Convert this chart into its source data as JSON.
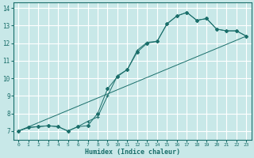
{
  "xlabel": "Humidex (Indice chaleur)",
  "bg_color": "#c8e8e8",
  "grid_color": "#ffffff",
  "line_color": "#1a6e6a",
  "xlim": [
    -0.5,
    23.5
  ],
  "ylim": [
    6.5,
    14.3
  ],
  "xticks": [
    0,
    1,
    2,
    3,
    4,
    5,
    6,
    7,
    8,
    9,
    10,
    11,
    12,
    13,
    14,
    15,
    16,
    17,
    18,
    19,
    20,
    21,
    22,
    23
  ],
  "yticks": [
    7,
    8,
    9,
    10,
    11,
    12,
    13,
    14
  ],
  "line1_x": [
    0,
    1,
    2,
    3,
    4,
    5,
    6,
    7,
    8,
    9,
    10,
    11,
    12,
    13,
    14,
    15,
    16,
    17,
    18,
    19,
    20,
    21,
    22,
    23
  ],
  "line1_y": [
    7.0,
    7.2,
    7.25,
    7.3,
    7.25,
    7.0,
    7.25,
    7.3,
    8.0,
    9.4,
    10.1,
    10.5,
    11.5,
    12.0,
    12.1,
    13.1,
    13.55,
    13.75,
    13.3,
    13.4,
    12.8,
    12.7,
    12.7,
    12.4
  ],
  "line2_x": [
    0,
    1,
    2,
    3,
    4,
    5,
    6,
    7,
    8,
    9,
    10,
    11,
    12,
    13,
    14,
    15,
    16,
    17,
    18,
    19,
    20,
    21,
    22,
    23
  ],
  "line2_y": [
    7.0,
    7.2,
    7.25,
    7.3,
    7.25,
    7.0,
    7.25,
    7.55,
    7.8,
    9.0,
    10.15,
    10.5,
    11.6,
    12.05,
    12.1,
    13.1,
    13.55,
    13.75,
    13.3,
    13.4,
    12.8,
    12.7,
    12.7,
    12.4
  ],
  "line3_x": [
    0,
    23
  ],
  "line3_y": [
    7.0,
    12.4
  ]
}
